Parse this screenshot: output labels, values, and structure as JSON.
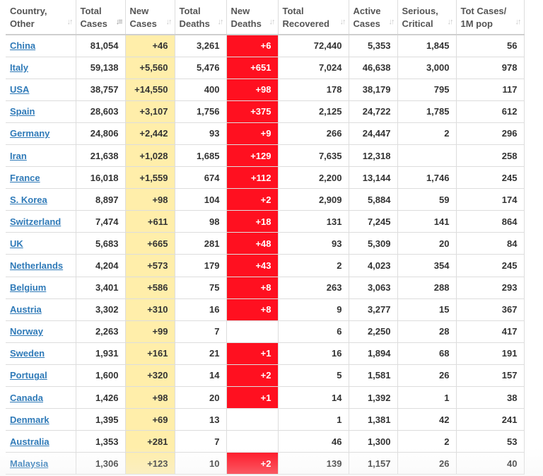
{
  "table": {
    "headers": [
      {
        "line1": "Country,",
        "line2": "Other",
        "sort_icon": "sort-both-icon",
        "sort_glyph": "↓↑"
      },
      {
        "line1": "Total",
        "line2": "Cases",
        "sort_icon": "sort-descending-icon",
        "sort_glyph": "↓≡"
      },
      {
        "line1": "New",
        "line2": "Cases",
        "sort_icon": "sort-both-icon",
        "sort_glyph": "↓↑"
      },
      {
        "line1": "Total",
        "line2": "Deaths",
        "sort_icon": "sort-both-icon",
        "sort_glyph": "↓↑"
      },
      {
        "line1": "New",
        "line2": "Deaths",
        "sort_icon": "sort-both-icon",
        "sort_glyph": "↓↑"
      },
      {
        "line1": "Total",
        "line2": "Recovered",
        "sort_icon": "sort-both-icon",
        "sort_glyph": "↓↑"
      },
      {
        "line1": "Active",
        "line2": "Cases",
        "sort_icon": "sort-both-icon",
        "sort_glyph": "↓↑"
      },
      {
        "line1": "Serious,",
        "line2": "Critical",
        "sort_icon": "sort-both-icon",
        "sort_glyph": "↓↑"
      },
      {
        "line1": "Tot Cases/",
        "line2": "1M pop",
        "sort_icon": "sort-both-icon",
        "sort_glyph": "↓↑"
      }
    ],
    "rows": [
      {
        "country": "China",
        "total_cases": "81,054",
        "new_cases": "+46",
        "total_deaths": "3,261",
        "new_deaths": "+6",
        "total_recovered": "72,440",
        "active_cases": "5,353",
        "serious_critical": "1,845",
        "tot_cases_1m": "56"
      },
      {
        "country": "Italy",
        "total_cases": "59,138",
        "new_cases": "+5,560",
        "total_deaths": "5,476",
        "new_deaths": "+651",
        "total_recovered": "7,024",
        "active_cases": "46,638",
        "serious_critical": "3,000",
        "tot_cases_1m": "978"
      },
      {
        "country": "USA",
        "total_cases": "38,757",
        "new_cases": "+14,550",
        "total_deaths": "400",
        "new_deaths": "+98",
        "total_recovered": "178",
        "active_cases": "38,179",
        "serious_critical": "795",
        "tot_cases_1m": "117"
      },
      {
        "country": "Spain",
        "total_cases": "28,603",
        "new_cases": "+3,107",
        "total_deaths": "1,756",
        "new_deaths": "+375",
        "total_recovered": "2,125",
        "active_cases": "24,722",
        "serious_critical": "1,785",
        "tot_cases_1m": "612"
      },
      {
        "country": "Germany",
        "total_cases": "24,806",
        "new_cases": "+2,442",
        "total_deaths": "93",
        "new_deaths": "+9",
        "total_recovered": "266",
        "active_cases": "24,447",
        "serious_critical": "2",
        "tot_cases_1m": "296"
      },
      {
        "country": "Iran",
        "total_cases": "21,638",
        "new_cases": "+1,028",
        "total_deaths": "1,685",
        "new_deaths": "+129",
        "total_recovered": "7,635",
        "active_cases": "12,318",
        "serious_critical": "",
        "tot_cases_1m": "258"
      },
      {
        "country": "France",
        "total_cases": "16,018",
        "new_cases": "+1,559",
        "total_deaths": "674",
        "new_deaths": "+112",
        "total_recovered": "2,200",
        "active_cases": "13,144",
        "serious_critical": "1,746",
        "tot_cases_1m": "245"
      },
      {
        "country": "S. Korea",
        "total_cases": "8,897",
        "new_cases": "+98",
        "total_deaths": "104",
        "new_deaths": "+2",
        "total_recovered": "2,909",
        "active_cases": "5,884",
        "serious_critical": "59",
        "tot_cases_1m": "174"
      },
      {
        "country": "Switzerland",
        "total_cases": "7,474",
        "new_cases": "+611",
        "total_deaths": "98",
        "new_deaths": "+18",
        "total_recovered": "131",
        "active_cases": "7,245",
        "serious_critical": "141",
        "tot_cases_1m": "864"
      },
      {
        "country": "UK",
        "total_cases": "5,683",
        "new_cases": "+665",
        "total_deaths": "281",
        "new_deaths": "+48",
        "total_recovered": "93",
        "active_cases": "5,309",
        "serious_critical": "20",
        "tot_cases_1m": "84"
      },
      {
        "country": "Netherlands",
        "total_cases": "4,204",
        "new_cases": "+573",
        "total_deaths": "179",
        "new_deaths": "+43",
        "total_recovered": "2",
        "active_cases": "4,023",
        "serious_critical": "354",
        "tot_cases_1m": "245"
      },
      {
        "country": "Belgium",
        "total_cases": "3,401",
        "new_cases": "+586",
        "total_deaths": "75",
        "new_deaths": "+8",
        "total_recovered": "263",
        "active_cases": "3,063",
        "serious_critical": "288",
        "tot_cases_1m": "293"
      },
      {
        "country": "Austria",
        "total_cases": "3,302",
        "new_cases": "+310",
        "total_deaths": "16",
        "new_deaths": "+8",
        "total_recovered": "9",
        "active_cases": "3,277",
        "serious_critical": "15",
        "tot_cases_1m": "367"
      },
      {
        "country": "Norway",
        "total_cases": "2,263",
        "new_cases": "+99",
        "total_deaths": "7",
        "new_deaths": "",
        "total_recovered": "6",
        "active_cases": "2,250",
        "serious_critical": "28",
        "tot_cases_1m": "417"
      },
      {
        "country": "Sweden",
        "total_cases": "1,931",
        "new_cases": "+161",
        "total_deaths": "21",
        "new_deaths": "+1",
        "total_recovered": "16",
        "active_cases": "1,894",
        "serious_critical": "68",
        "tot_cases_1m": "191"
      },
      {
        "country": "Portugal",
        "total_cases": "1,600",
        "new_cases": "+320",
        "total_deaths": "14",
        "new_deaths": "+2",
        "total_recovered": "5",
        "active_cases": "1,581",
        "serious_critical": "26",
        "tot_cases_1m": "157"
      },
      {
        "country": "Canada",
        "total_cases": "1,426",
        "new_cases": "+98",
        "total_deaths": "20",
        "new_deaths": "+1",
        "total_recovered": "14",
        "active_cases": "1,392",
        "serious_critical": "1",
        "tot_cases_1m": "38"
      },
      {
        "country": "Denmark",
        "total_cases": "1,395",
        "new_cases": "+69",
        "total_deaths": "13",
        "new_deaths": "",
        "total_recovered": "1",
        "active_cases": "1,381",
        "serious_critical": "42",
        "tot_cases_1m": "241"
      },
      {
        "country": "Australia",
        "total_cases": "1,353",
        "new_cases": "+281",
        "total_deaths": "7",
        "new_deaths": "",
        "total_recovered": "46",
        "active_cases": "1,300",
        "serious_critical": "2",
        "tot_cases_1m": "53"
      },
      {
        "country": "Malaysia",
        "total_cases": "1,306",
        "new_cases": "+123",
        "total_deaths": "10",
        "new_deaths": "+2",
        "total_recovered": "139",
        "active_cases": "1,157",
        "serious_critical": "26",
        "tot_cases_1m": "40"
      }
    ]
  },
  "colors": {
    "new_cases_bg": "#ffeeaa",
    "new_deaths_bg": "#ff1020",
    "link": "#2f7ab8",
    "border": "#dddddd"
  }
}
